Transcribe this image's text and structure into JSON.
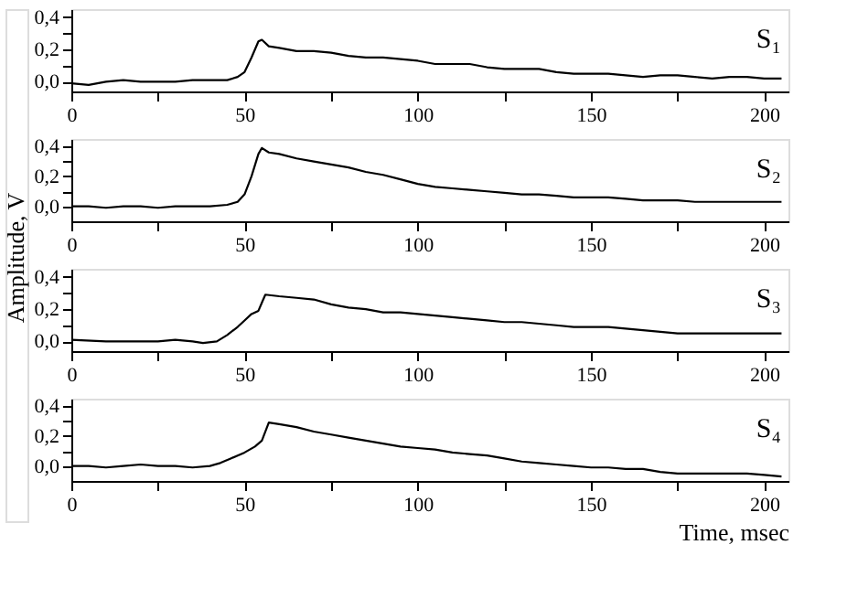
{
  "chart_data": [
    {
      "type": "line",
      "annotations": [
        "S₁"
      ],
      "xlim": [
        0,
        207
      ],
      "ylim": [
        -0.06,
        0.45
      ],
      "grid": false,
      "xticks": [
        0,
        {
          "value": 25,
          "label": null
        },
        50,
        {
          "value": 75,
          "label": null
        },
        100,
        {
          "value": 125,
          "label": null
        },
        150,
        {
          "value": 175,
          "label": null
        },
        200
      ],
      "yticks": [
        {
          "value": 0,
          "label": "0,0"
        },
        {
          "value": 0.1,
          "label": null
        },
        {
          "value": 0.2,
          "label": "0,2"
        },
        {
          "value": 0.3,
          "label": null
        },
        {
          "value": 0.4,
          "label": "0,4"
        }
      ],
      "series": [
        {
          "color": "#000000",
          "x": [
            0,
            5,
            10,
            15,
            20,
            25,
            30,
            35,
            40,
            45,
            48,
            50,
            52,
            54,
            55,
            57,
            60,
            65,
            70,
            75,
            80,
            85,
            90,
            95,
            100,
            105,
            110,
            115,
            120,
            125,
            130,
            135,
            140,
            145,
            150,
            155,
            160,
            165,
            170,
            175,
            180,
            185,
            190,
            195,
            200,
            205
          ],
          "values": [
            -0.01,
            -0.02,
            0.0,
            0.01,
            0.0,
            0.0,
            0.0,
            0.01,
            0.01,
            0.01,
            0.03,
            0.06,
            0.15,
            0.25,
            0.26,
            0.22,
            0.21,
            0.19,
            0.19,
            0.18,
            0.16,
            0.15,
            0.15,
            0.14,
            0.13,
            0.11,
            0.11,
            0.11,
            0.09,
            0.08,
            0.08,
            0.08,
            0.06,
            0.05,
            0.05,
            0.05,
            0.04,
            0.03,
            0.04,
            0.04,
            0.03,
            0.02,
            0.03,
            0.03,
            0.02,
            0.02
          ]
        }
      ]
    },
    {
      "type": "line",
      "annotations": [
        "S₂"
      ],
      "ylabel": "Amplitude, V",
      "xlim": [
        0,
        207
      ],
      "ylim": [
        -0.1,
        0.45
      ],
      "grid": false,
      "xticks": [
        0,
        {
          "value": 25,
          "label": null
        },
        50,
        {
          "value": 75,
          "label": null
        },
        100,
        {
          "value": 125,
          "label": null
        },
        150,
        {
          "value": 175,
          "label": null
        },
        200
      ],
      "yticks": [
        {
          "value": 0,
          "label": "0,0"
        },
        {
          "value": 0.1,
          "label": null
        },
        {
          "value": 0.2,
          "label": "0,2"
        },
        {
          "value": 0.3,
          "label": null
        },
        {
          "value": 0.4,
          "label": "0,4"
        }
      ],
      "series": [
        {
          "color": "#000000",
          "x": [
            0,
            5,
            10,
            15,
            20,
            25,
            30,
            35,
            40,
            45,
            48,
            50,
            52,
            54,
            55,
            57,
            60,
            65,
            70,
            75,
            80,
            85,
            90,
            95,
            100,
            105,
            110,
            115,
            120,
            125,
            130,
            135,
            140,
            145,
            150,
            155,
            160,
            165,
            170,
            175,
            180,
            185,
            190,
            195,
            200,
            205
          ],
          "values": [
            0.0,
            0.0,
            -0.01,
            0.0,
            0.0,
            -0.01,
            0.0,
            0.0,
            0.0,
            0.01,
            0.03,
            0.08,
            0.2,
            0.35,
            0.39,
            0.36,
            0.35,
            0.32,
            0.3,
            0.28,
            0.26,
            0.23,
            0.21,
            0.18,
            0.15,
            0.13,
            0.12,
            0.11,
            0.1,
            0.09,
            0.08,
            0.08,
            0.07,
            0.06,
            0.06,
            0.06,
            0.05,
            0.04,
            0.04,
            0.04,
            0.03,
            0.03,
            0.03,
            0.03,
            0.03,
            0.03
          ]
        }
      ]
    },
    {
      "type": "line",
      "annotations": [
        "S₃"
      ],
      "xlim": [
        0,
        207
      ],
      "ylim": [
        -0.06,
        0.45
      ],
      "grid": false,
      "xticks": [
        0,
        {
          "value": 25,
          "label": null
        },
        50,
        {
          "value": 75,
          "label": null
        },
        100,
        {
          "value": 125,
          "label": null
        },
        150,
        {
          "value": 175,
          "label": null
        },
        200
      ],
      "yticks": [
        {
          "value": 0,
          "label": "0,0"
        },
        {
          "value": 0.1,
          "label": null
        },
        {
          "value": 0.2,
          "label": "0,2"
        },
        {
          "value": 0.3,
          "label": null
        },
        {
          "value": 0.4,
          "label": "0,4"
        }
      ],
      "series": [
        {
          "color": "#000000",
          "x": [
            0,
            10,
            20,
            25,
            30,
            35,
            38,
            42,
            45,
            48,
            50,
            52,
            54,
            55,
            56,
            60,
            65,
            70,
            75,
            80,
            85,
            90,
            95,
            100,
            105,
            110,
            115,
            120,
            125,
            130,
            135,
            140,
            145,
            150,
            155,
            160,
            165,
            170,
            175,
            180,
            185,
            190,
            195,
            200,
            205
          ],
          "values": [
            0.01,
            0.0,
            0.0,
            0.0,
            0.01,
            0.0,
            -0.01,
            0.0,
            0.04,
            0.09,
            0.13,
            0.17,
            0.19,
            0.24,
            0.29,
            0.28,
            0.27,
            0.26,
            0.23,
            0.21,
            0.2,
            0.18,
            0.18,
            0.17,
            0.16,
            0.15,
            0.14,
            0.13,
            0.12,
            0.12,
            0.11,
            0.1,
            0.09,
            0.09,
            0.09,
            0.08,
            0.07,
            0.06,
            0.05,
            0.05,
            0.05,
            0.05,
            0.05,
            0.05,
            0.05
          ]
        }
      ]
    },
    {
      "type": "line",
      "annotations": [
        "S₄"
      ],
      "xlabel": "Time, msec",
      "xlim": [
        0,
        207
      ],
      "ylim": [
        -0.1,
        0.45
      ],
      "grid": false,
      "xticks": [
        0,
        {
          "value": 25,
          "label": null
        },
        50,
        {
          "value": 75,
          "label": null
        },
        100,
        {
          "value": 125,
          "label": null
        },
        150,
        {
          "value": 175,
          "label": null
        },
        200
      ],
      "yticks": [
        {
          "value": 0,
          "label": "0,0"
        },
        {
          "value": 0.1,
          "label": null
        },
        {
          "value": 0.2,
          "label": "0,2"
        },
        {
          "value": 0.3,
          "label": null
        },
        {
          "value": 0.4,
          "label": "0,4"
        }
      ],
      "series": [
        {
          "color": "#000000",
          "x": [
            0,
            5,
            10,
            15,
            20,
            25,
            30,
            35,
            40,
            43,
            46,
            50,
            53,
            55,
            57,
            60,
            65,
            70,
            75,
            80,
            85,
            90,
            95,
            100,
            105,
            110,
            115,
            120,
            125,
            130,
            135,
            140,
            145,
            150,
            155,
            160,
            165,
            170,
            175,
            180,
            185,
            190,
            195,
            200,
            205
          ],
          "values": [
            0.0,
            0.0,
            -0.01,
            0.0,
            0.01,
            0.0,
            0.0,
            -0.01,
            0.0,
            0.02,
            0.05,
            0.09,
            0.13,
            0.17,
            0.29,
            0.28,
            0.26,
            0.23,
            0.21,
            0.19,
            0.17,
            0.15,
            0.13,
            0.12,
            0.11,
            0.09,
            0.08,
            0.07,
            0.05,
            0.03,
            0.02,
            0.01,
            0.0,
            -0.01,
            -0.01,
            -0.02,
            -0.02,
            -0.04,
            -0.05,
            -0.05,
            -0.05,
            -0.05,
            -0.05,
            -0.06,
            -0.07
          ]
        }
      ]
    }
  ]
}
